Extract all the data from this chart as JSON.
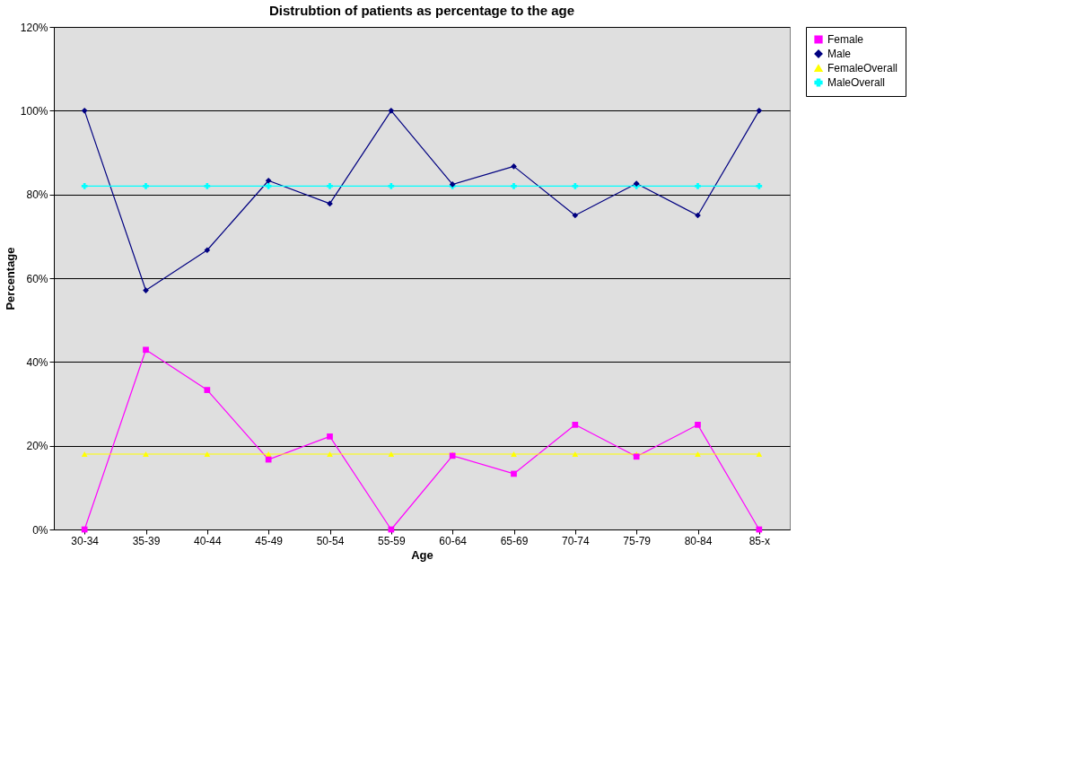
{
  "chart_data": {
    "type": "line",
    "title": "Distrubtion of patients as percentage to the age",
    "xlabel": "Age",
    "ylabel": "Percentage",
    "categories": [
      "30-34",
      "35-39",
      "40-44",
      "45-49",
      "50-54",
      "55-59",
      "60-64",
      "65-69",
      "70-74",
      "75-79",
      "80-84",
      "85-x"
    ],
    "series": [
      {
        "name": "Female",
        "color": "#ff00ff",
        "marker": "square",
        "values": [
          0,
          42.9,
          33.3,
          16.7,
          22.2,
          0,
          17.6,
          13.3,
          25,
          17.4,
          25,
          0
        ]
      },
      {
        "name": "Male",
        "color": "#000080",
        "marker": "diamond",
        "values": [
          100,
          57.1,
          66.7,
          83.3,
          77.8,
          100,
          82.4,
          86.7,
          75,
          82.6,
          75,
          100
        ]
      },
      {
        "name": "FemaleOverall",
        "color": "#ffff00",
        "marker": "triangle",
        "values": [
          18,
          18,
          18,
          18,
          18,
          18,
          18,
          18,
          18,
          18,
          18,
          18
        ]
      },
      {
        "name": "MaleOverall",
        "color": "#00ffff",
        "marker": "cross",
        "values": [
          82,
          82,
          82,
          82,
          82,
          82,
          82,
          82,
          82,
          82,
          82,
          82
        ]
      }
    ],
    "ylim": [
      0,
      120
    ],
    "yticks": [
      {
        "value": 0,
        "label": "0%"
      },
      {
        "value": 20,
        "label": "20%"
      },
      {
        "value": 40,
        "label": "40%"
      },
      {
        "value": 60,
        "label": "60%"
      },
      {
        "value": 80,
        "label": "80%"
      },
      {
        "value": 100,
        "label": "100%"
      },
      {
        "value": 120,
        "label": "120%"
      }
    ],
    "grid": "y",
    "legend": "right",
    "line_style": "solid"
  }
}
